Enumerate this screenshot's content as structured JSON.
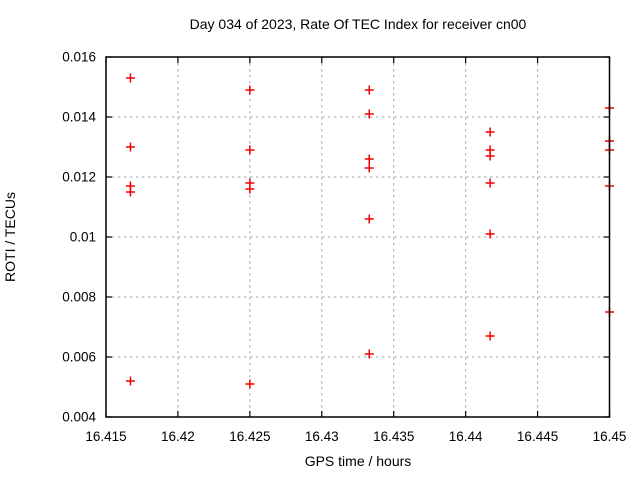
{
  "window": {
    "background": "#ffffff"
  },
  "chart_data": {
    "type": "scatter",
    "title": "Day 034 of 2023, Rate Of TEC Index for receiver cn00",
    "xlabel": "GPS time / hours",
    "ylabel": "ROTI / TECUs",
    "xlim": [
      16.415,
      16.45
    ],
    "ylim": [
      0.004,
      0.016
    ],
    "grid": true,
    "legend": "none",
    "x_ticks": [
      {
        "value": 16.415,
        "label": "16.415"
      },
      {
        "value": 16.42,
        "label": "16.42"
      },
      {
        "value": 16.425,
        "label": "16.425"
      },
      {
        "value": 16.43,
        "label": "16.43"
      },
      {
        "value": 16.435,
        "label": "16.435"
      },
      {
        "value": 16.44,
        "label": "16.44"
      },
      {
        "value": 16.445,
        "label": "16.445"
      },
      {
        "value": 16.45,
        "label": "16.45"
      }
    ],
    "y_ticks": [
      {
        "value": 0.004,
        "label": "0.004"
      },
      {
        "value": 0.006,
        "label": "0.006"
      },
      {
        "value": 0.008,
        "label": "0.008"
      },
      {
        "value": 0.01,
        "label": "0.01"
      },
      {
        "value": 0.012,
        "label": "0.012"
      },
      {
        "value": 0.014,
        "label": "0.014"
      },
      {
        "value": 0.016,
        "label": "0.016"
      }
    ],
    "marker": {
      "shape": "plus",
      "color": "#ee0000",
      "size": 9
    },
    "points": [
      [
        16.4167,
        0.0153
      ],
      [
        16.4167,
        0.013
      ],
      [
        16.4167,
        0.0117
      ],
      [
        16.4167,
        0.0115
      ],
      [
        16.4167,
        0.0052
      ],
      [
        16.425,
        0.0149
      ],
      [
        16.425,
        0.0129
      ],
      [
        16.425,
        0.0118
      ],
      [
        16.425,
        0.0116
      ],
      [
        16.425,
        0.0051
      ],
      [
        16.4333,
        0.0149
      ],
      [
        16.4333,
        0.0141
      ],
      [
        16.4333,
        0.0126
      ],
      [
        16.4333,
        0.0123
      ],
      [
        16.4333,
        0.0106
      ],
      [
        16.4333,
        0.0061
      ],
      [
        16.4417,
        0.0135
      ],
      [
        16.4417,
        0.0129
      ],
      [
        16.4417,
        0.0127
      ],
      [
        16.4417,
        0.0118
      ],
      [
        16.4417,
        0.0101
      ],
      [
        16.4417,
        0.0067
      ],
      [
        16.45,
        0.0143
      ],
      [
        16.45,
        0.0132
      ],
      [
        16.45,
        0.0129
      ],
      [
        16.45,
        0.0117
      ],
      [
        16.45,
        0.0075
      ]
    ],
    "colors": {
      "frame": "#000000",
      "grid": "#a6a6a6",
      "text": "#000000",
      "marker": "#ee0000",
      "background": "#ffffff"
    }
  }
}
